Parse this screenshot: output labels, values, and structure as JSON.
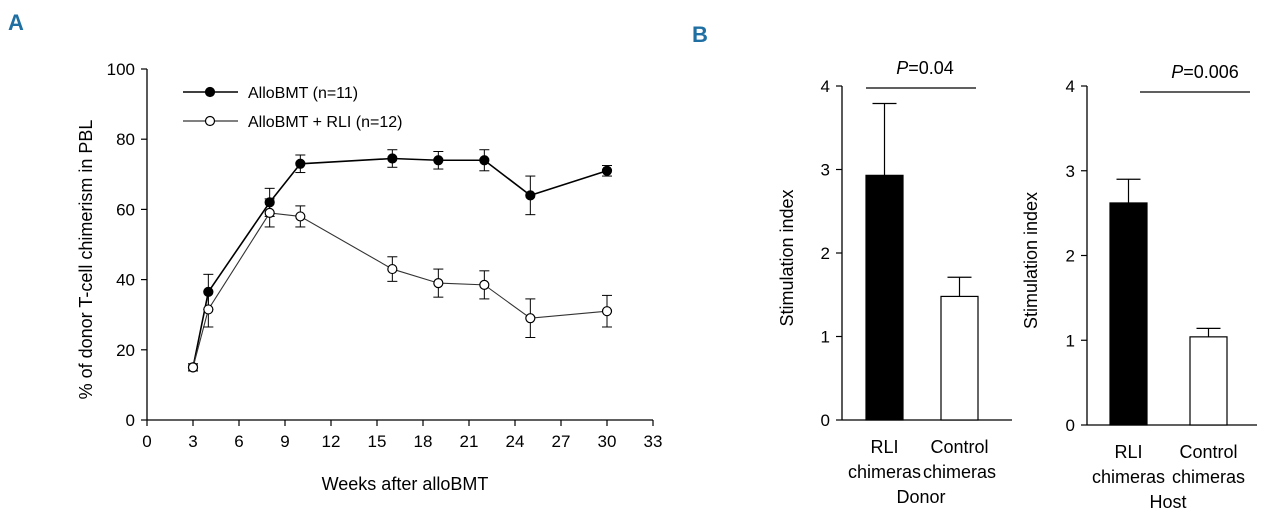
{
  "chart_data": [
    {
      "id": "A",
      "panel_label": "A",
      "type": "line",
      "xlabel": "Weeks after alloBMT",
      "ylabel": "% of donor T-cell chimerism in PBL",
      "xlim": [
        0,
        33
      ],
      "ylim": [
        0,
        100
      ],
      "xticks": [
        "0",
        "3",
        "6",
        "9",
        "12",
        "15",
        "18",
        "21",
        "24",
        "27",
        "30",
        "33"
      ],
      "yticks": [
        "0",
        "20",
        "40",
        "60",
        "80",
        "100"
      ],
      "legend_position": "top-left",
      "series": [
        {
          "name": "AlloBMT (n=11)",
          "marker": "filled-circle",
          "x": [
            3,
            4,
            8,
            10,
            16,
            19,
            22,
            25,
            30
          ],
          "y": [
            15,
            36.5,
            62,
            73,
            74.5,
            74,
            74,
            64,
            71
          ],
          "err": [
            1,
            5,
            4,
            2.5,
            2.5,
            2.5,
            3,
            5.5,
            1.5
          ]
        },
        {
          "name": "AlloBMT + RLI (n=12)",
          "marker": "open-circle",
          "x": [
            3,
            4,
            8,
            10,
            16,
            19,
            22,
            25,
            30
          ],
          "y": [
            15,
            31.5,
            59,
            58,
            43,
            39,
            38.5,
            29,
            31
          ],
          "err": [
            1,
            5,
            4,
            3,
            3.5,
            4,
            4,
            5.5,
            4.5
          ]
        }
      ]
    },
    {
      "id": "B-donor",
      "panel_label": "B",
      "type": "bar",
      "ylabel": "Stimulation index",
      "group_label": "Donor",
      "ylim": [
        0,
        4
      ],
      "yticks": [
        "0",
        "1",
        "2",
        "3",
        "4"
      ],
      "categories": [
        "RLI\nchimeras",
        "Control\nchimeras"
      ],
      "values": [
        2.93,
        1.48
      ],
      "err": [
        0.86,
        0.23
      ],
      "fills": [
        "#000000",
        "#ffffff"
      ],
      "significance": {
        "prefix": "P",
        "text": "=0.04"
      }
    },
    {
      "id": "B-host",
      "type": "bar",
      "ylabel": "Stimulation index",
      "group_label": "Host",
      "ylim": [
        0,
        4
      ],
      "yticks": [
        "0",
        "1",
        "2",
        "3",
        "4"
      ],
      "categories": [
        "RLI\nchimeras",
        "Control\nchimeras"
      ],
      "values": [
        2.62,
        1.04
      ],
      "err": [
        0.28,
        0.1
      ],
      "fills": [
        "#000000",
        "#ffffff"
      ],
      "significance": {
        "prefix": "P",
        "text": "=0.006"
      }
    }
  ]
}
